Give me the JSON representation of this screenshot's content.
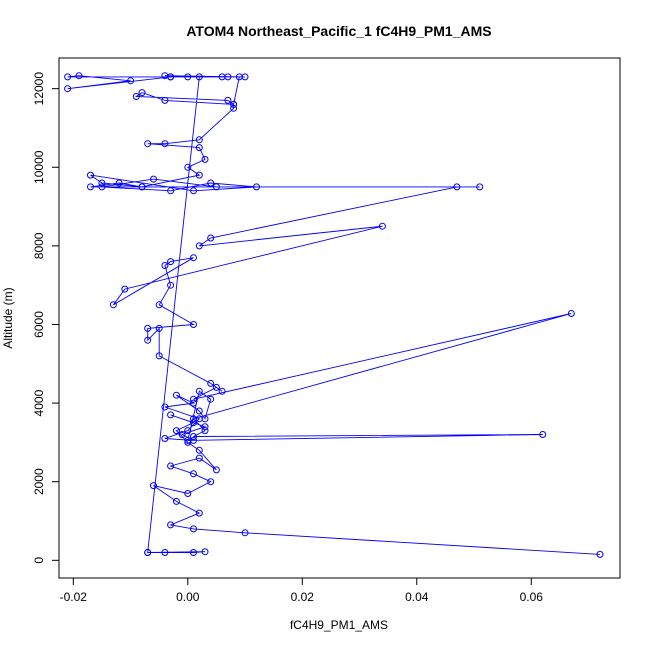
{
  "chart_data": {
    "type": "scatter",
    "title": "ATOM4 Northeast_Pacific_1 fC4H9_PM1_AMS",
    "xlabel": "fC4H9_PM1_AMS",
    "ylabel": "Altitude (m)",
    "xlim": [
      -0.0225,
      0.0755
    ],
    "ylim": [
      -450,
      12780
    ],
    "xticks": [
      "-0.02",
      "0.00",
      "0.02",
      "0.04",
      "0.06"
    ],
    "yticks": [
      "0",
      "2000",
      "4000",
      "6000",
      "8000",
      "10000",
      "12000"
    ],
    "marker": "open-circle",
    "connected": true,
    "grid": false,
    "legend": "none",
    "color": "#0000ff",
    "series": [
      {
        "x": [
          0.072,
          0.01,
          0.001,
          -0.003,
          0.002,
          -0.002,
          -0.006,
          0.0,
          0.004,
          0.001,
          -0.003,
          0.002,
          0.005,
          0.002,
          0.0,
          -0.002,
          0.001,
          -0.003,
          0.003,
          -0.001,
          0.001,
          -0.004,
          0.0,
          0.002,
          -0.004,
          0.001,
          -0.002,
          0.002,
          0.003,
          0.004,
          0.002,
          0.0,
          0.062,
          0.001,
          0.003,
          0.001,
          0.067,
          0.001,
          0.005,
          0.006,
          0.004,
          -0.005,
          -0.005,
          -0.007,
          -0.007,
          0.001,
          -0.005,
          -0.003,
          -0.004,
          -0.003,
          0.001,
          -0.013,
          -0.011,
          0.034,
          0.002,
          0.004,
          0.047,
          0.051,
          -0.017,
          -0.012,
          -0.008,
          0.005,
          -0.006,
          -0.015,
          -0.003,
          0.004,
          0.012,
          0.001,
          -0.017,
          -0.015,
          -0.008,
          0.002,
          0.0,
          0.003,
          0.002,
          -0.007,
          -0.004,
          0.002,
          0.008,
          0.008,
          0.007,
          -0.009,
          -0.008,
          -0.004,
          0.008,
          0.009,
          0.007,
          -0.003,
          -0.021,
          -0.019,
          -0.01,
          -0.021,
          -0.003,
          0.006,
          0.0,
          -0.004,
          0.01,
          0.002,
          -0.007,
          -0.004,
          0.001,
          0.003,
          -0.007
        ],
        "y": [
          150,
          700,
          800,
          900,
          1200,
          1500,
          1900,
          1700,
          2000,
          2200,
          2400,
          2600,
          2300,
          2800,
          3000,
          3300,
          3500,
          3700,
          3400,
          3200,
          3050,
          3100,
          3300,
          3600,
          3900,
          4000,
          4200,
          3800,
          3600,
          4100,
          4300,
          3050,
          3200,
          3150,
          3300,
          3600,
          6280,
          4100,
          4400,
          4300,
          4500,
          5200,
          5900,
          5600,
          5900,
          6000,
          6500,
          7000,
          7500,
          7600,
          7700,
          6500,
          6900,
          8500,
          8000,
          8200,
          9500,
          9500,
          9500,
          9600,
          9500,
          9500,
          9700,
          9500,
          9400,
          9600,
          9500,
          9400,
          9800,
          9600,
          9500,
          9800,
          10000,
          10200,
          10500,
          10600,
          10600,
          10700,
          11500,
          11600,
          11700,
          11800,
          11900,
          11700,
          11600,
          12300,
          12300,
          12300,
          12300,
          12330,
          12200,
          12000,
          12300,
          12300,
          12300,
          12330,
          12300,
          12300,
          200,
          200,
          200,
          220,
          200
        ]
      }
    ]
  }
}
